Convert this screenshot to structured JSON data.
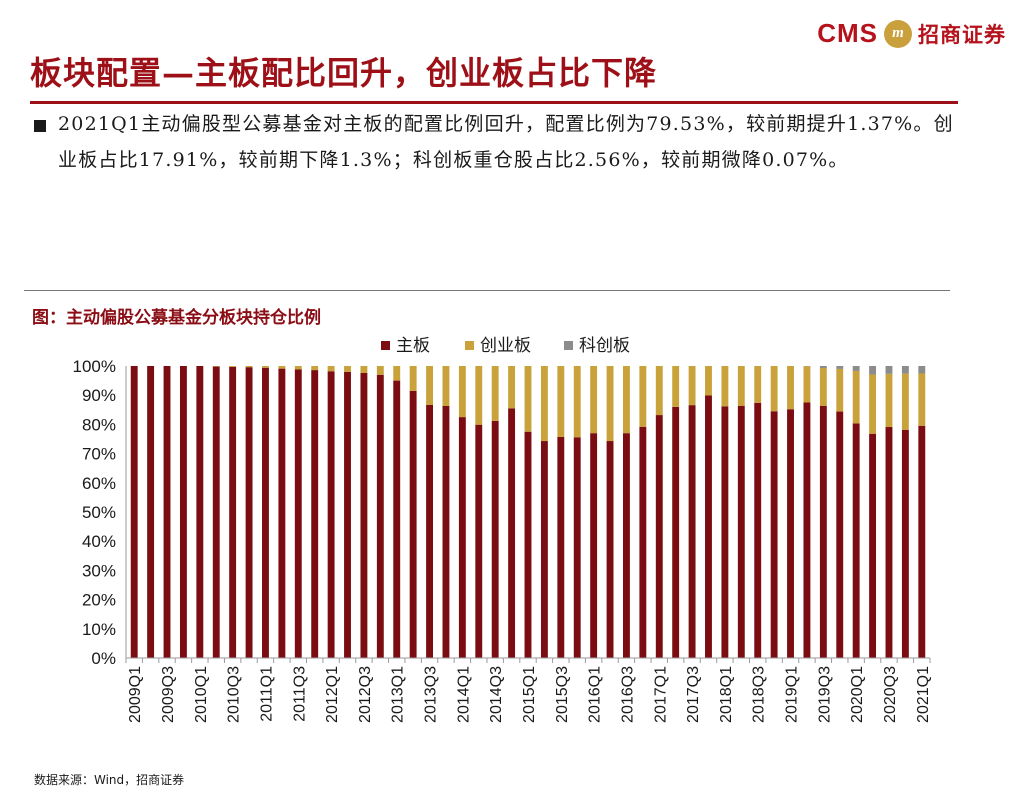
{
  "header": {
    "logo_cms": "CMS",
    "logo_mark": "m",
    "logo_cn": "招商证券",
    "title": "板块配置—主板配比回升，创业板占比下降"
  },
  "bullet": {
    "text": "2021Q1主动偏股型公募基金对主板的配置比例回升，配置比例为79.53%，较前期提升1.37%。创业板占比17.91%，较前期下降1.3%；科创板重仓股占比2.56%，较前期微降0.07%。"
  },
  "colors": {
    "brand_red": "#9e1018",
    "main_board": "#7b0c12",
    "chinext": "#c9a23c",
    "star": "#8c8c8c"
  },
  "chart_data": {
    "type": "bar",
    "stacked": true,
    "title": "图：主动偏股公募基金分板块持仓比例",
    "categories": [
      "2009Q1",
      "2009Q2",
      "2009Q3",
      "2009Q4",
      "2010Q1",
      "2010Q2",
      "2010Q3",
      "2010Q4",
      "2011Q1",
      "2011Q2",
      "2011Q3",
      "2011Q4",
      "2012Q1",
      "2012Q2",
      "2012Q3",
      "2012Q4",
      "2013Q1",
      "2013Q2",
      "2013Q3",
      "2013Q4",
      "2014Q1",
      "2014Q2",
      "2014Q3",
      "2014Q4",
      "2015Q1",
      "2015Q2",
      "2015Q3",
      "2015Q4",
      "2016Q1",
      "2016Q2",
      "2016Q3",
      "2016Q4",
      "2017Q1",
      "2017Q2",
      "2017Q3",
      "2017Q4",
      "2018Q1",
      "2018Q2",
      "2018Q3",
      "2018Q4",
      "2019Q1",
      "2019Q2",
      "2019Q3",
      "2019Q4",
      "2020Q1",
      "2020Q2",
      "2020Q3",
      "2020Q4",
      "2021Q1"
    ],
    "tick_labels": [
      "2009Q1",
      "2009Q3",
      "2010Q1",
      "2010Q3",
      "2011Q1",
      "2011Q3",
      "2012Q1",
      "2012Q3",
      "2013Q1",
      "2013Q3",
      "2014Q1",
      "2014Q3",
      "2015Q1",
      "2015Q3",
      "2016Q1",
      "2016Q3",
      "2017Q1",
      "2017Q3",
      "2018Q1",
      "2018Q3",
      "2019Q1",
      "2019Q3",
      "2020Q1",
      "2020Q3",
      "2021Q1"
    ],
    "series": [
      {
        "name": "主板",
        "color": "#7b0c12",
        "values": [
          100,
          100,
          100,
          100,
          100,
          99.8,
          99.7,
          99.6,
          99.4,
          99.1,
          98.8,
          98.6,
          98.2,
          98,
          97.6,
          97,
          95,
          91.5,
          86.7,
          86.3,
          82.5,
          79.9,
          81.2,
          85.5,
          77.5,
          74.3,
          75.7,
          75.6,
          77,
          74.3,
          77,
          79.2,
          83.2,
          86,
          86.6,
          89.9,
          86.2,
          86.3,
          87.4,
          84.5,
          85.2,
          87.5,
          86.3,
          84.4,
          80.3,
          76.8,
          79.1,
          78.16,
          79.53
        ]
      },
      {
        "name": "创业板",
        "color": "#c9a23c",
        "values": [
          0,
          0,
          0,
          0,
          0,
          0.2,
          0.3,
          0.4,
          0.6,
          0.9,
          1.2,
          1.4,
          1.8,
          2,
          2.4,
          3,
          5,
          8.5,
          13.3,
          13.7,
          17.5,
          20.1,
          18.8,
          14.5,
          22.5,
          25.7,
          24.3,
          24.4,
          23,
          25.7,
          23,
          20.8,
          16.8,
          14,
          13.4,
          10.1,
          13.8,
          13.7,
          12.6,
          15.5,
          14.8,
          12.4,
          13,
          14.6,
          18,
          20.3,
          18.2,
          19.21,
          17.91
        ]
      },
      {
        "name": "科创板",
        "color": "#8c8c8c",
        "values": [
          0,
          0,
          0,
          0,
          0,
          0,
          0,
          0,
          0,
          0,
          0,
          0,
          0,
          0,
          0,
          0,
          0,
          0,
          0,
          0,
          0,
          0,
          0,
          0,
          0,
          0,
          0,
          0,
          0,
          0,
          0,
          0,
          0,
          0,
          0,
          0,
          0,
          0,
          0,
          0,
          0,
          0.1,
          0.7,
          1,
          1.7,
          2.9,
          2.7,
          2.63,
          2.56
        ]
      }
    ],
    "ylim": [
      0,
      100
    ],
    "yticks": [
      "0%",
      "10%",
      "20%",
      "30%",
      "40%",
      "50%",
      "60%",
      "70%",
      "80%",
      "90%",
      "100%"
    ],
    "legend_position": "top-center",
    "xlabel": "",
    "ylabel": ""
  },
  "footer": {
    "source": "数据来源：Wind，招商证券"
  }
}
